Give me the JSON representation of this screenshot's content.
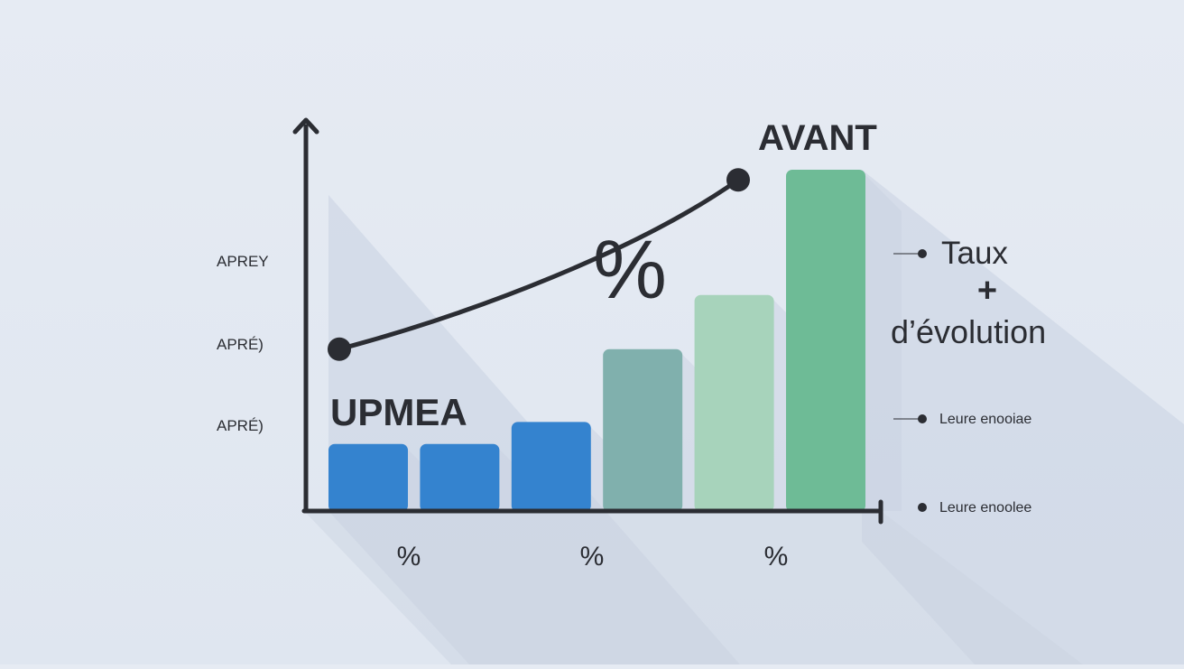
{
  "colors": {
    "background": "#e4e9f2",
    "shadow": "#c9d2e1",
    "axis": "#2b2d33",
    "text": "#2b2d33",
    "line": "#2b2d33",
    "bars": [
      "#3483cf",
      "#3483cf",
      "#3483cf",
      "#80b0ad",
      "#a7d3bb",
      "#6ebb96"
    ]
  },
  "chart_data": {
    "type": "bar",
    "categories": [
      "",
      "",
      "",
      "",
      "",
      ""
    ],
    "series": [
      {
        "values": [
          19,
          19,
          25.5,
          47,
          63,
          100
        ]
      }
    ],
    "ylim": [
      0,
      100
    ],
    "trend_line": {
      "type": "line",
      "values": [
        47,
        97
      ],
      "x_positions": [
        0.4,
        4.5
      ]
    },
    "x_tick_labels": [
      "%",
      "%",
      "%"
    ],
    "y_tick_labels": [
      "APREY",
      "APRÉ)",
      "APRÉ)"
    ],
    "annotations": {
      "bars_label": "UPMEA",
      "top_label": "AVANT",
      "percent_symbol": "%"
    },
    "legend": {
      "title_line1": "Taux",
      "plus": "+",
      "title_line2": "d’évolution",
      "item1": "Leure enooiae",
      "item2": "Leure enoolee",
      "placement": "right"
    }
  }
}
